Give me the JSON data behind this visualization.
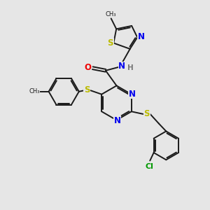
{
  "background_color": "#e6e6e6",
  "bond_color": "#1a1a1a",
  "bond_width": 1.4,
  "atom_colors": {
    "N": "#0000ee",
    "O": "#ee0000",
    "S": "#bbbb00",
    "Cl": "#009900",
    "C": "#1a1a1a",
    "H": "#777777"
  },
  "font_size": 7.5
}
